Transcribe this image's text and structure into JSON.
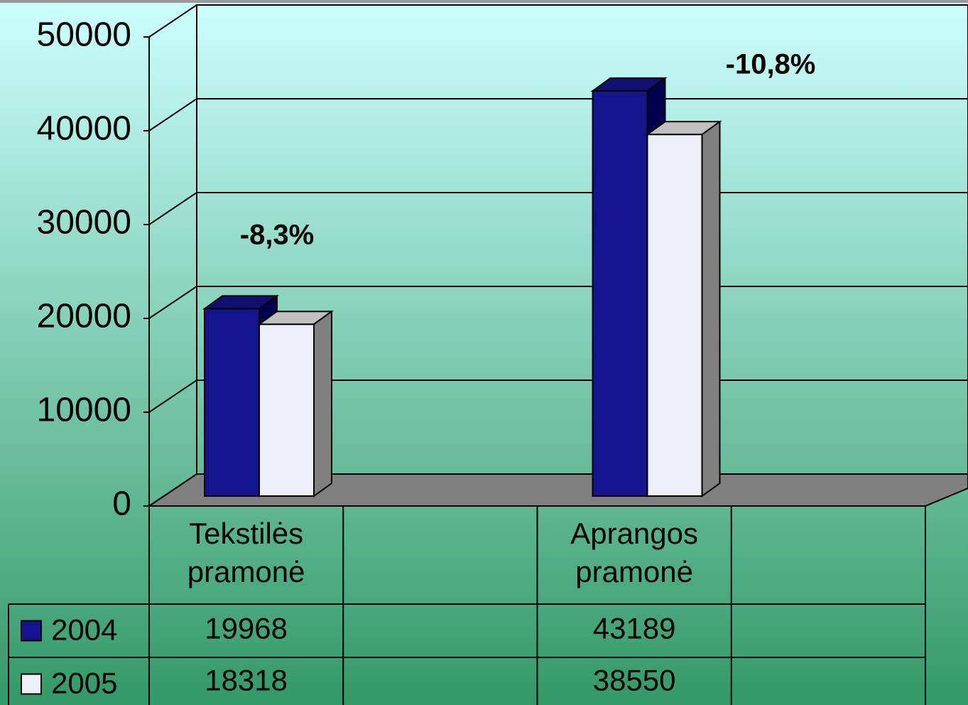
{
  "chart_data": {
    "type": "bar3d",
    "categories": [
      "Tekstilės pramonė",
      null,
      "Aprangos pramonė",
      null
    ],
    "series": [
      {
        "name": "2004",
        "color": "#14148c",
        "values": [
          19968,
          null,
          43189,
          null
        ]
      },
      {
        "name": "2005",
        "color": "#eeeef8",
        "values": [
          18318,
          null,
          38550,
          null
        ]
      }
    ],
    "annotations": [
      "-8,3%",
      "-10,8%"
    ],
    "ylim": [
      0,
      50000
    ],
    "yticks": [
      0,
      10000,
      20000,
      30000,
      40000,
      50000
    ],
    "grid": true
  }
}
